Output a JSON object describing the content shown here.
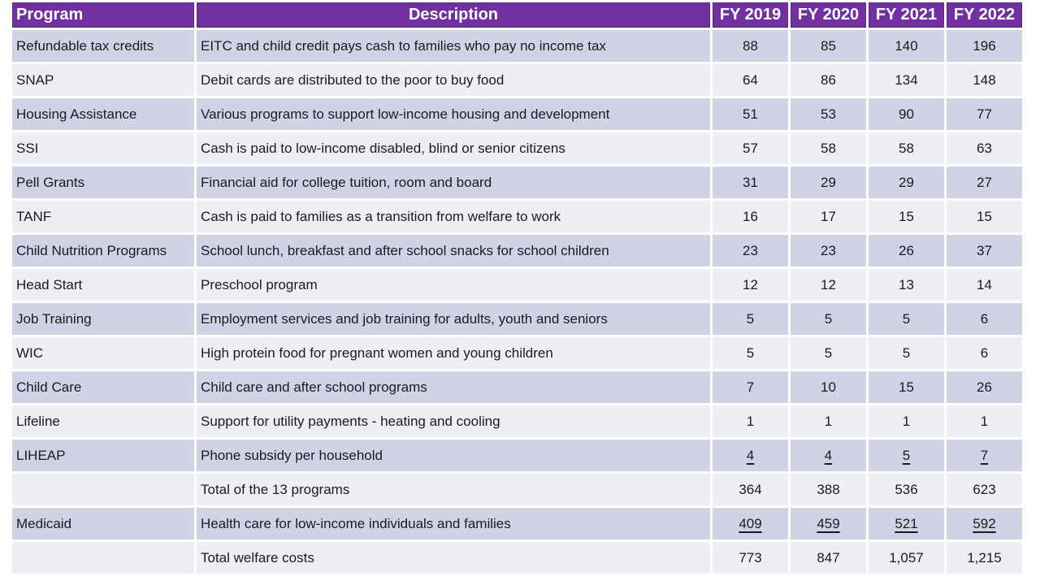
{
  "chart_data": {
    "type": "table",
    "columns": [
      "Program",
      "Description",
      "FY 2019",
      "FY 2020",
      "FY 2021",
      "FY 2022"
    ],
    "rows": [
      {
        "program": "Refundable tax credits",
        "description": "EITC and child credit pays cash to families who pay no income tax",
        "values": [
          "88",
          "85",
          "140",
          "196"
        ],
        "underline": false
      },
      {
        "program": "SNAP",
        "description": "Debit cards are distributed to the poor to buy food",
        "values": [
          "64",
          "86",
          "134",
          "148"
        ],
        "underline": false
      },
      {
        "program": "Housing Assistance",
        "description": "Various programs to support low-income housing and development",
        "values": [
          "51",
          "53",
          "90",
          "77"
        ],
        "underline": false
      },
      {
        "program": "SSI",
        "description": "Cash is paid to low-income disabled, blind or senior citizens",
        "values": [
          "57",
          "58",
          "58",
          "63"
        ],
        "underline": false
      },
      {
        "program": "Pell Grants",
        "description": "Financial aid for college tuition, room and board",
        "values": [
          "31",
          "29",
          "29",
          "27"
        ],
        "underline": false
      },
      {
        "program": "TANF",
        "description": "Cash is paid to families as a transition from welfare to work",
        "values": [
          "16",
          "17",
          "15",
          "15"
        ],
        "underline": false
      },
      {
        "program": "Child Nutrition Programs",
        "description": "School lunch, breakfast and after school snacks for school children",
        "values": [
          "23",
          "23",
          "26",
          "37"
        ],
        "underline": false
      },
      {
        "program": "Head Start",
        "description": "Preschool program",
        "values": [
          "12",
          "12",
          "13",
          "14"
        ],
        "underline": false
      },
      {
        "program": "Job Training",
        "description": "Employment services and job training for adults, youth and seniors",
        "values": [
          "5",
          "5",
          "5",
          "6"
        ],
        "underline": false
      },
      {
        "program": "WIC",
        "description": "High protein food for pregnant women and young children",
        "values": [
          "5",
          "5",
          "5",
          "6"
        ],
        "underline": false
      },
      {
        "program": "Child Care",
        "description": "Child care and after school programs",
        "values": [
          "7",
          "10",
          "15",
          "26"
        ],
        "underline": false
      },
      {
        "program": "Lifeline",
        "description": "Support for utility payments - heating and cooling",
        "values": [
          "1",
          "1",
          "1",
          "1"
        ],
        "underline": false
      },
      {
        "program": "LIHEAP",
        "description": "Phone subsidy per household",
        "values": [
          "4",
          "4",
          "5",
          "7"
        ],
        "underline": true
      },
      {
        "program": "",
        "description": "Total of the 13 programs",
        "values": [
          "364",
          "388",
          "536",
          "623"
        ],
        "underline": false
      },
      {
        "program": "Medicaid",
        "description": "Health care for low-income individuals and families",
        "values": [
          "409",
          "459",
          "521",
          "592"
        ],
        "underline": true
      },
      {
        "program": "",
        "description": "Total welfare costs",
        "values": [
          "773",
          "847",
          "1,057",
          "1,215"
        ],
        "underline": false
      }
    ]
  },
  "colors": {
    "header_bg": "#7030A0",
    "header_border": "#5E2787",
    "row_dark": "#CFD3E3",
    "row_light": "#EDEFF5",
    "header_text": "#FFFFFF",
    "body_text": "#1A1A24"
  }
}
